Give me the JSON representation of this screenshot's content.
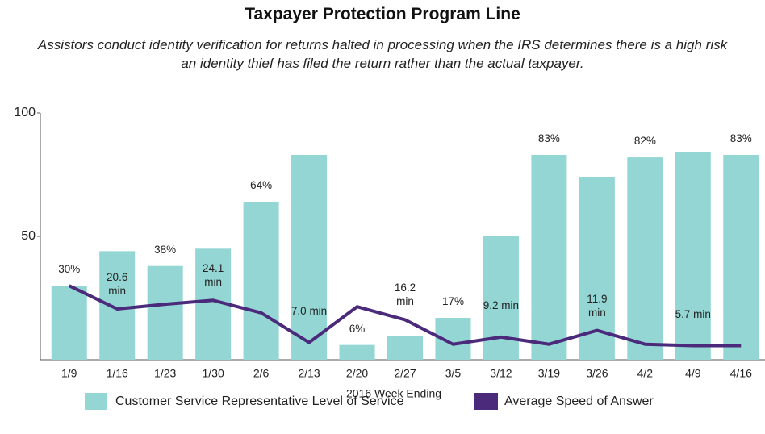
{
  "chart_data": {
    "type": "bar",
    "title": "Taxpayer Protection Program Line",
    "subtitle": "Assistors conduct identity verification for returns halted in processing when the IRS determines there is a high risk an identity thief has filed the return rather than the actual taxpayer.",
    "x_label": "2016 Week Ending",
    "categories": [
      "1/9",
      "1/16",
      "1/23",
      "1/30",
      "2/6",
      "2/13",
      "2/20",
      "2/27",
      "3/5",
      "3/12",
      "3/19",
      "3/26",
      "4/2",
      "4/9",
      "4/16"
    ],
    "series": [
      {
        "name": "Customer Service Representative Level of Service",
        "type": "bar",
        "color": "#93d6d3",
        "values": [
          30,
          44,
          38,
          45,
          64,
          83,
          6,
          9.5,
          17,
          50,
          83,
          74,
          82,
          84,
          83
        ],
        "value_labels": [
          "30%",
          null,
          "38%",
          null,
          "64%",
          null,
          "6%",
          null,
          "17%",
          null,
          "83%",
          null,
          "82%",
          null,
          "83%"
        ]
      },
      {
        "name": "Average Speed of Answer",
        "type": "line",
        "color": "#4b2a7b",
        "values": [
          30,
          20.6,
          22.5,
          24.1,
          19,
          7.0,
          21.5,
          16.2,
          6.3,
          9.2,
          6.3,
          11.9,
          6.3,
          5.7,
          5.7
        ],
        "value_labels": [
          null,
          "20.6 min",
          null,
          "24.1 min",
          null,
          "7.0 min",
          null,
          "16.2 min",
          null,
          "9.2 min",
          null,
          "11.9 min",
          null,
          "5.7 min",
          null
        ]
      }
    ],
    "ylim": [
      0,
      100
    ],
    "yticks": [
      50,
      100
    ],
    "grid": false
  }
}
